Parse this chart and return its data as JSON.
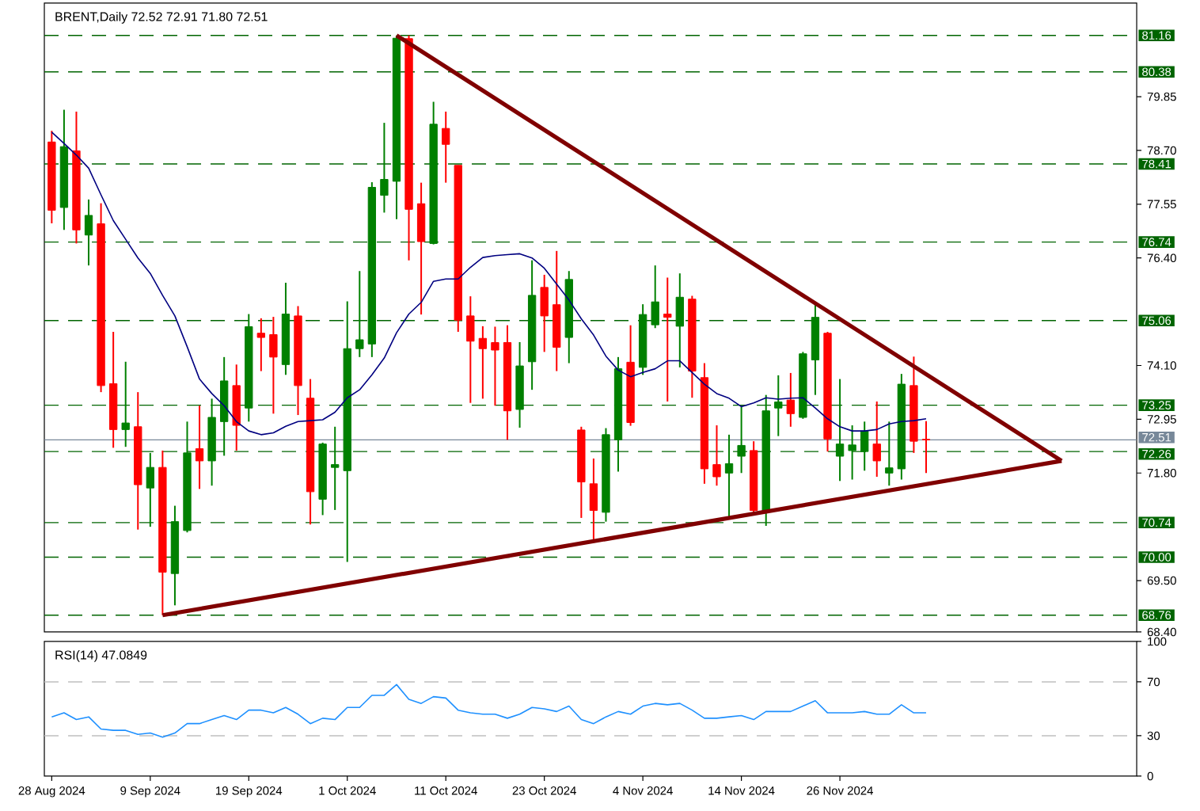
{
  "chart_data": [
    {
      "type": "candlestick",
      "title": "BRENT,Daily 72.52 72.91 71.80 72.51",
      "tick_labels": "y",
      "categories": [
        null,
        null,
        null,
        null,
        null,
        null,
        null,
        null,
        null,
        null,
        null,
        null,
        null,
        null,
        null,
        null,
        null,
        null,
        null,
        null,
        null,
        null,
        null,
        null,
        null,
        null,
        null,
        null,
        null,
        null,
        null,
        null,
        null,
        null,
        null,
        null,
        null,
        null,
        null,
        null,
        null,
        null,
        null,
        null,
        null,
        null,
        null,
        null,
        null,
        null,
        null,
        null,
        null,
        null,
        null,
        null,
        null,
        null,
        null,
        null,
        null,
        null,
        null,
        null,
        null,
        null,
        null,
        null,
        null,
        null,
        null,
        null,
        null,
        null,
        null,
        null,
        null,
        null,
        null,
        null,
        null,
        null,
        null,
        null,
        null,
        null,
        null,
        null,
        null
      ],
      "ylim": [
        68.4,
        81.85
      ],
      "yticks": [
        {
          "value": 68.4,
          "label": "68.40"
        },
        {
          "value": 69.5,
          "label": "69.50"
        },
        {
          "value": 71.8,
          "label": "71.80"
        },
        {
          "value": 72.95,
          "label": "72.95"
        },
        {
          "value": 74.1,
          "label": "74.10"
        },
        {
          "value": 76.4,
          "label": "76.40"
        },
        {
          "value": 77.55,
          "label": "77.55"
        },
        {
          "value": 78.7,
          "label": "78.70"
        },
        {
          "value": 79.85,
          "label": "79.85"
        }
      ],
      "ohlc": [
        [
          78.88,
          79.12,
          77.14,
          77.42
        ],
        [
          77.48,
          79.57,
          77.0,
          78.78
        ],
        [
          78.69,
          79.53,
          76.71,
          77.0
        ],
        [
          76.89,
          77.65,
          76.24,
          77.31
        ],
        [
          77.13,
          77.57,
          73.53,
          73.67
        ],
        [
          73.71,
          74.82,
          72.34,
          72.73
        ],
        [
          72.73,
          74.18,
          72.36,
          72.87
        ],
        [
          72.79,
          73.53,
          70.59,
          71.55
        ],
        [
          71.48,
          72.23,
          70.65,
          71.92
        ],
        [
          71.92,
          72.28,
          68.76,
          69.68
        ],
        [
          69.65,
          71.1,
          68.97,
          70.76
        ],
        [
          70.57,
          72.9,
          70.53,
          72.23
        ],
        [
          72.32,
          73.24,
          71.46,
          72.06
        ],
        [
          72.06,
          73.39,
          71.53,
          72.99
        ],
        [
          72.9,
          74.28,
          72.17,
          73.77
        ],
        [
          73.67,
          74.12,
          72.28,
          72.82
        ],
        [
          73.19,
          75.2,
          72.9,
          74.93
        ],
        [
          74.79,
          75.11,
          73.98,
          74.7
        ],
        [
          74.76,
          75.14,
          73.07,
          74.28
        ],
        [
          74.12,
          75.87,
          73.9,
          75.2
        ],
        [
          75.16,
          75.37,
          73.04,
          73.67
        ],
        [
          73.4,
          73.81,
          70.7,
          71.4
        ],
        [
          71.24,
          72.45,
          70.9,
          72.42
        ],
        [
          71.92,
          72.79,
          71.01,
          71.98
        ],
        [
          71.85,
          75.47,
          69.9,
          74.46
        ],
        [
          74.46,
          76.12,
          74.28,
          74.65
        ],
        [
          74.56,
          78.02,
          74.28,
          77.91
        ],
        [
          77.74,
          79.29,
          77.37,
          78.08
        ],
        [
          78.04,
          81.16,
          77.23,
          81.1
        ],
        [
          81.09,
          81.16,
          76.35,
          77.44
        ],
        [
          77.56,
          78.01,
          75.19,
          76.75
        ],
        [
          76.71,
          79.74,
          76.69,
          79.26
        ],
        [
          79.17,
          79.53,
          78.01,
          78.83
        ],
        [
          78.38,
          78.38,
          74.82,
          75.07
        ],
        [
          75.16,
          75.58,
          73.3,
          74.62
        ],
        [
          74.68,
          74.94,
          73.39,
          74.46
        ],
        [
          74.59,
          74.93,
          73.24,
          74.43
        ],
        [
          74.59,
          74.96,
          72.51,
          73.13
        ],
        [
          73.16,
          74.6,
          72.77,
          74.09
        ],
        [
          74.18,
          76.35,
          73.58,
          75.6
        ],
        [
          75.77,
          76.04,
          74.39,
          75.16
        ],
        [
          75.4,
          76.55,
          73.98,
          74.49
        ],
        [
          74.7,
          76.12,
          74.15,
          75.94
        ],
        [
          72.72,
          72.79,
          70.84,
          71.61
        ],
        [
          71.57,
          72.11,
          70.31,
          71.0
        ],
        [
          70.96,
          72.76,
          70.76,
          72.62
        ],
        [
          72.51,
          74.28,
          71.83,
          74.03
        ],
        [
          74.17,
          74.96,
          72.81,
          72.88
        ],
        [
          74.06,
          75.41,
          73.9,
          75.19
        ],
        [
          74.97,
          76.24,
          74.9,
          75.46
        ],
        [
          75.2,
          75.98,
          73.33,
          75.13
        ],
        [
          74.94,
          76.07,
          74.06,
          75.56
        ],
        [
          75.52,
          75.59,
          73.41,
          73.98
        ],
        [
          73.84,
          74.15,
          71.57,
          71.89
        ],
        [
          71.98,
          72.82,
          71.53,
          71.72
        ],
        [
          71.8,
          72.62,
          70.82,
          72.0
        ],
        [
          72.16,
          73.24,
          71.8,
          72.39
        ],
        [
          72.28,
          72.48,
          70.93,
          71.0
        ],
        [
          70.96,
          73.47,
          70.67,
          73.13
        ],
        [
          73.19,
          73.89,
          72.59,
          73.32
        ],
        [
          73.36,
          73.94,
          72.79,
          73.07
        ],
        [
          72.99,
          74.39,
          72.96,
          74.35
        ],
        [
          74.22,
          75.41,
          73.47,
          75.13
        ],
        [
          74.79,
          74.82,
          72.26,
          72.53
        ],
        [
          72.16,
          73.81,
          71.63,
          72.42
        ],
        [
          72.28,
          72.82,
          71.66,
          72.4
        ],
        [
          72.26,
          72.9,
          71.85,
          72.7
        ],
        [
          72.42,
          73.33,
          71.72,
          72.06
        ],
        [
          71.8,
          72.9,
          71.53,
          71.91
        ],
        [
          71.89,
          73.92,
          71.66,
          73.7
        ],
        [
          73.67,
          74.29,
          72.23,
          72.48
        ],
        [
          72.52,
          72.91,
          71.8,
          72.51
        ],
        null,
        null,
        null,
        null,
        null,
        null,
        null,
        null,
        null,
        null,
        null,
        null,
        null,
        null,
        null,
        null,
        null
      ],
      "colors": [
        "#ff0000",
        "#008000",
        "#ff0000",
        "#008000",
        "#ff0000",
        "#ff0000",
        "#008000",
        "#ff0000",
        "#008000",
        "#ff0000",
        "#008000",
        "#008000",
        "#ff0000",
        "#008000",
        "#008000",
        "#ff0000",
        "#008000",
        "#ff0000",
        "#ff0000",
        "#008000",
        "#ff0000",
        "#ff0000",
        "#008000",
        "#008000",
        "#008000",
        "#008000",
        "#008000",
        "#008000",
        "#008000",
        "#ff0000",
        "#ff0000",
        "#008000",
        "#ff0000",
        "#ff0000",
        "#ff0000",
        "#ff0000",
        "#ff0000",
        "#ff0000",
        "#008000",
        "#008000",
        "#ff0000",
        "#ff0000",
        "#008000",
        "#ff0000",
        "#ff0000",
        "#008000",
        "#008000",
        "#ff0000",
        "#008000",
        "#008000",
        "#ff0000",
        "#008000",
        "#ff0000",
        "#ff0000",
        "#ff0000",
        "#008000",
        "#008000",
        "#ff0000",
        "#008000",
        "#008000",
        "#ff0000",
        "#008000",
        "#008000",
        "#ff0000",
        "#008000",
        "#008000",
        "#008000",
        "#ff0000",
        "#008000",
        "#008000",
        "#ff0000",
        "#ff0000",
        null,
        null,
        null,
        null,
        null,
        null,
        null,
        null,
        null,
        null,
        null,
        null,
        null,
        null,
        null,
        null,
        null
      ],
      "series": [
        {
          "type": "line",
          "color": "#000080",
          "values": [
            79.09,
            78.85,
            78.6,
            78.32,
            77.75,
            77.2,
            76.8,
            76.4,
            76.07,
            75.6,
            75.16,
            74.5,
            73.81,
            73.5,
            73.24,
            72.9,
            72.7,
            72.62,
            72.66,
            72.8,
            72.9,
            72.92,
            72.94,
            73.1,
            73.41,
            73.58,
            73.9,
            74.26,
            74.8,
            75.2,
            75.45,
            75.9,
            75.95,
            75.95,
            76.2,
            76.41,
            76.45,
            76.47,
            76.49,
            76.4,
            76.18,
            75.84,
            75.5,
            75.1,
            74.75,
            74.3,
            74.0,
            73.86,
            73.95,
            74.03,
            74.2,
            74.2,
            73.95,
            73.7,
            73.5,
            73.4,
            73.22,
            73.3,
            73.41,
            73.38,
            73.4,
            73.41,
            73.19,
            72.96,
            72.79,
            72.7,
            72.7,
            72.73,
            72.85,
            72.9,
            72.92,
            72.96,
            null,
            null,
            null,
            null,
            null,
            null,
            null,
            null,
            null,
            null,
            null,
            null,
            null,
            null,
            null,
            null,
            null
          ]
        },
        {
          "type": "line",
          "color": "#800000",
          "values": [
            null,
            null,
            null,
            null,
            null,
            null,
            null,
            null,
            null,
            null,
            null,
            null,
            null,
            null,
            null,
            null,
            null,
            null,
            null,
            null,
            null,
            null,
            null,
            null,
            null,
            null,
            null,
            null,
            81.16,
            null,
            null,
            null,
            null,
            null,
            null,
            null,
            null,
            null,
            null,
            null,
            null,
            null,
            null,
            null,
            null,
            null,
            null,
            null,
            null,
            null,
            null,
            null,
            null,
            null,
            null,
            null,
            null,
            null,
            null,
            null,
            null,
            null,
            null,
            null,
            null,
            null,
            null,
            null,
            null,
            null,
            null,
            null,
            null,
            null,
            null,
            null,
            null,
            null,
            null,
            null,
            null,
            null,
            72.06,
            null,
            null,
            null,
            null,
            null,
            null
          ]
        },
        {
          "type": "line",
          "color": "#800000",
          "values": [
            null,
            null,
            null,
            null,
            null,
            null,
            null,
            null,
            null,
            68.76,
            null,
            null,
            null,
            null,
            null,
            null,
            null,
            null,
            null,
            null,
            null,
            null,
            null,
            null,
            null,
            null,
            null,
            null,
            null,
            null,
            null,
            null,
            null,
            null,
            null,
            null,
            null,
            null,
            null,
            null,
            null,
            null,
            null,
            null,
            null,
            null,
            null,
            null,
            null,
            null,
            null,
            null,
            null,
            null,
            null,
            null,
            null,
            null,
            null,
            null,
            null,
            null,
            null,
            null,
            null,
            null,
            null,
            null,
            null,
            null,
            null,
            null,
            null,
            null,
            null,
            null,
            null,
            null,
            null,
            null,
            null,
            null,
            72.06,
            null,
            null,
            null,
            null,
            null,
            null
          ]
        }
      ],
      "ref_lines": [
        {
          "axis": "y",
          "value": 81.16,
          "label": "81.16",
          "color": "#006400",
          "line_style": "dashed"
        },
        {
          "axis": "y",
          "value": 80.38,
          "label": "80.38",
          "color": "#006400",
          "line_style": "dashed"
        },
        {
          "axis": "y",
          "value": 78.41,
          "label": "78.41",
          "color": "#006400",
          "line_style": "dashed"
        },
        {
          "axis": "y",
          "value": 76.74,
          "label": "76.74",
          "color": "#006400",
          "line_style": "dashed"
        },
        {
          "axis": "y",
          "value": 75.06,
          "label": "75.06",
          "color": "#006400",
          "line_style": "dashed"
        },
        {
          "axis": "y",
          "value": 73.25,
          "label": "73.25",
          "color": "#006400",
          "line_style": "dashed"
        },
        {
          "axis": "y",
          "value": 72.26,
          "label": "72.26",
          "color": "#006400",
          "line_style": "dashed"
        },
        {
          "axis": "y",
          "value": 70.74,
          "label": "70.74",
          "color": "#006400",
          "line_style": "dashed"
        },
        {
          "axis": "y",
          "value": 70.0,
          "label": "70.00",
          "color": "#006400",
          "line_style": "dashed"
        },
        {
          "axis": "y",
          "value": 68.76,
          "label": "68.76",
          "color": "#006400",
          "line_style": "dashed"
        },
        {
          "axis": "y",
          "value": 72.51,
          "label": "72.51",
          "color": "#778899",
          "line_style": "solid"
        }
      ]
    },
    {
      "type": "line",
      "title": "RSI(14) 47.0849",
      "color": "#1e90ff",
      "categories": [
        "28 Aug 2024",
        null,
        null,
        null,
        null,
        null,
        null,
        null,
        "9 Sep 2024",
        null,
        null,
        null,
        null,
        null,
        null,
        null,
        "19 Sep 2024",
        null,
        null,
        null,
        null,
        null,
        null,
        null,
        "1 Oct 2024",
        null,
        null,
        null,
        null,
        null,
        null,
        null,
        "11 Oct 2024",
        null,
        null,
        null,
        null,
        null,
        null,
        null,
        "23 Oct 2024",
        null,
        null,
        null,
        null,
        null,
        null,
        null,
        "4 Nov 2024",
        null,
        null,
        null,
        null,
        null,
        null,
        null,
        "14 Nov 2024",
        null,
        null,
        null,
        null,
        null,
        null,
        null,
        "26 Nov 2024",
        null,
        null,
        null,
        null,
        null,
        null,
        null,
        null,
        null,
        null,
        null,
        null,
        null,
        null,
        null,
        null,
        null,
        null,
        null,
        null,
        null,
        null,
        null,
        null
      ],
      "ylim": [
        0,
        100
      ],
      "yticks": [
        0,
        30,
        70,
        100
      ],
      "values": [
        44,
        47,
        42,
        44,
        35,
        34,
        34,
        31,
        32,
        29,
        32,
        39,
        39,
        42,
        45,
        42,
        49,
        49,
        47,
        51,
        46,
        39,
        43,
        42,
        51,
        51,
        60,
        60,
        68,
        57,
        54,
        59,
        58,
        49,
        47,
        46,
        46,
        43,
        46,
        51,
        50,
        48,
        52,
        42,
        39,
        44,
        48,
        46,
        52,
        54,
        53,
        54,
        49,
        43,
        43,
        44,
        45,
        42,
        48,
        48,
        48,
        52,
        56,
        47,
        47,
        47,
        48,
        46,
        46,
        53,
        47,
        47,
        null,
        null,
        null,
        null,
        null,
        null,
        null,
        null,
        null,
        null,
        null,
        null,
        null,
        null,
        null,
        null,
        null
      ],
      "ref_lines": [
        {
          "axis": "y",
          "value": 70,
          "color": "#c0c0c0",
          "line_style": "dashed"
        },
        {
          "axis": "y",
          "value": 30,
          "color": "#c0c0c0",
          "line_style": "dashed"
        }
      ]
    }
  ]
}
